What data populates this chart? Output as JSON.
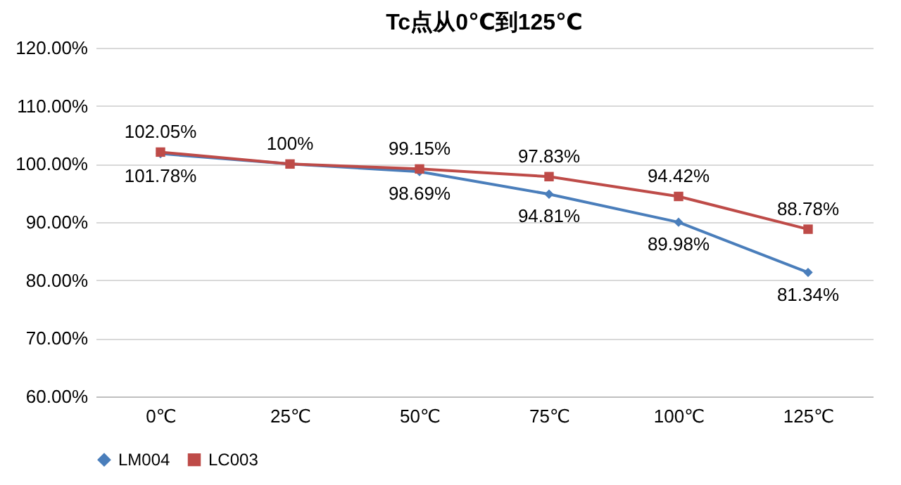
{
  "chart_data": {
    "type": "line",
    "title": "Tc点从0℃到125℃",
    "categories": [
      "0℃",
      "25℃",
      "50℃",
      "75℃",
      "100℃",
      "125℃"
    ],
    "series": [
      {
        "name": "LM004",
        "color": "#4a7ebb",
        "marker": "diamond",
        "values": [
          101.78,
          100,
          98.69,
          94.81,
          89.98,
          81.34
        ],
        "value_labels": [
          "101.78%",
          null,
          "98.69%",
          "94.81%",
          "89.98%",
          "81.34%"
        ]
      },
      {
        "name": "LC003",
        "color": "#be4b48",
        "marker": "square",
        "values": [
          102.05,
          100,
          99.15,
          97.83,
          94.42,
          88.78
        ],
        "value_labels": [
          "102.05%",
          "100%",
          "99.15%",
          "97.83%",
          "94.42%",
          "88.78%"
        ]
      }
    ],
    "ylim": [
      60,
      120
    ],
    "yticks": [
      {
        "value": 60,
        "label": "60.00%"
      },
      {
        "value": 70,
        "label": "70.00%"
      },
      {
        "value": 80,
        "label": "80.00%"
      },
      {
        "value": 90,
        "label": "90.00%"
      },
      {
        "value": 100,
        "label": "100.00%"
      },
      {
        "value": 110,
        "label": "110.00%"
      },
      {
        "value": 120,
        "label": "120.00%"
      }
    ],
    "grid": "y",
    "legend": "bottom"
  }
}
